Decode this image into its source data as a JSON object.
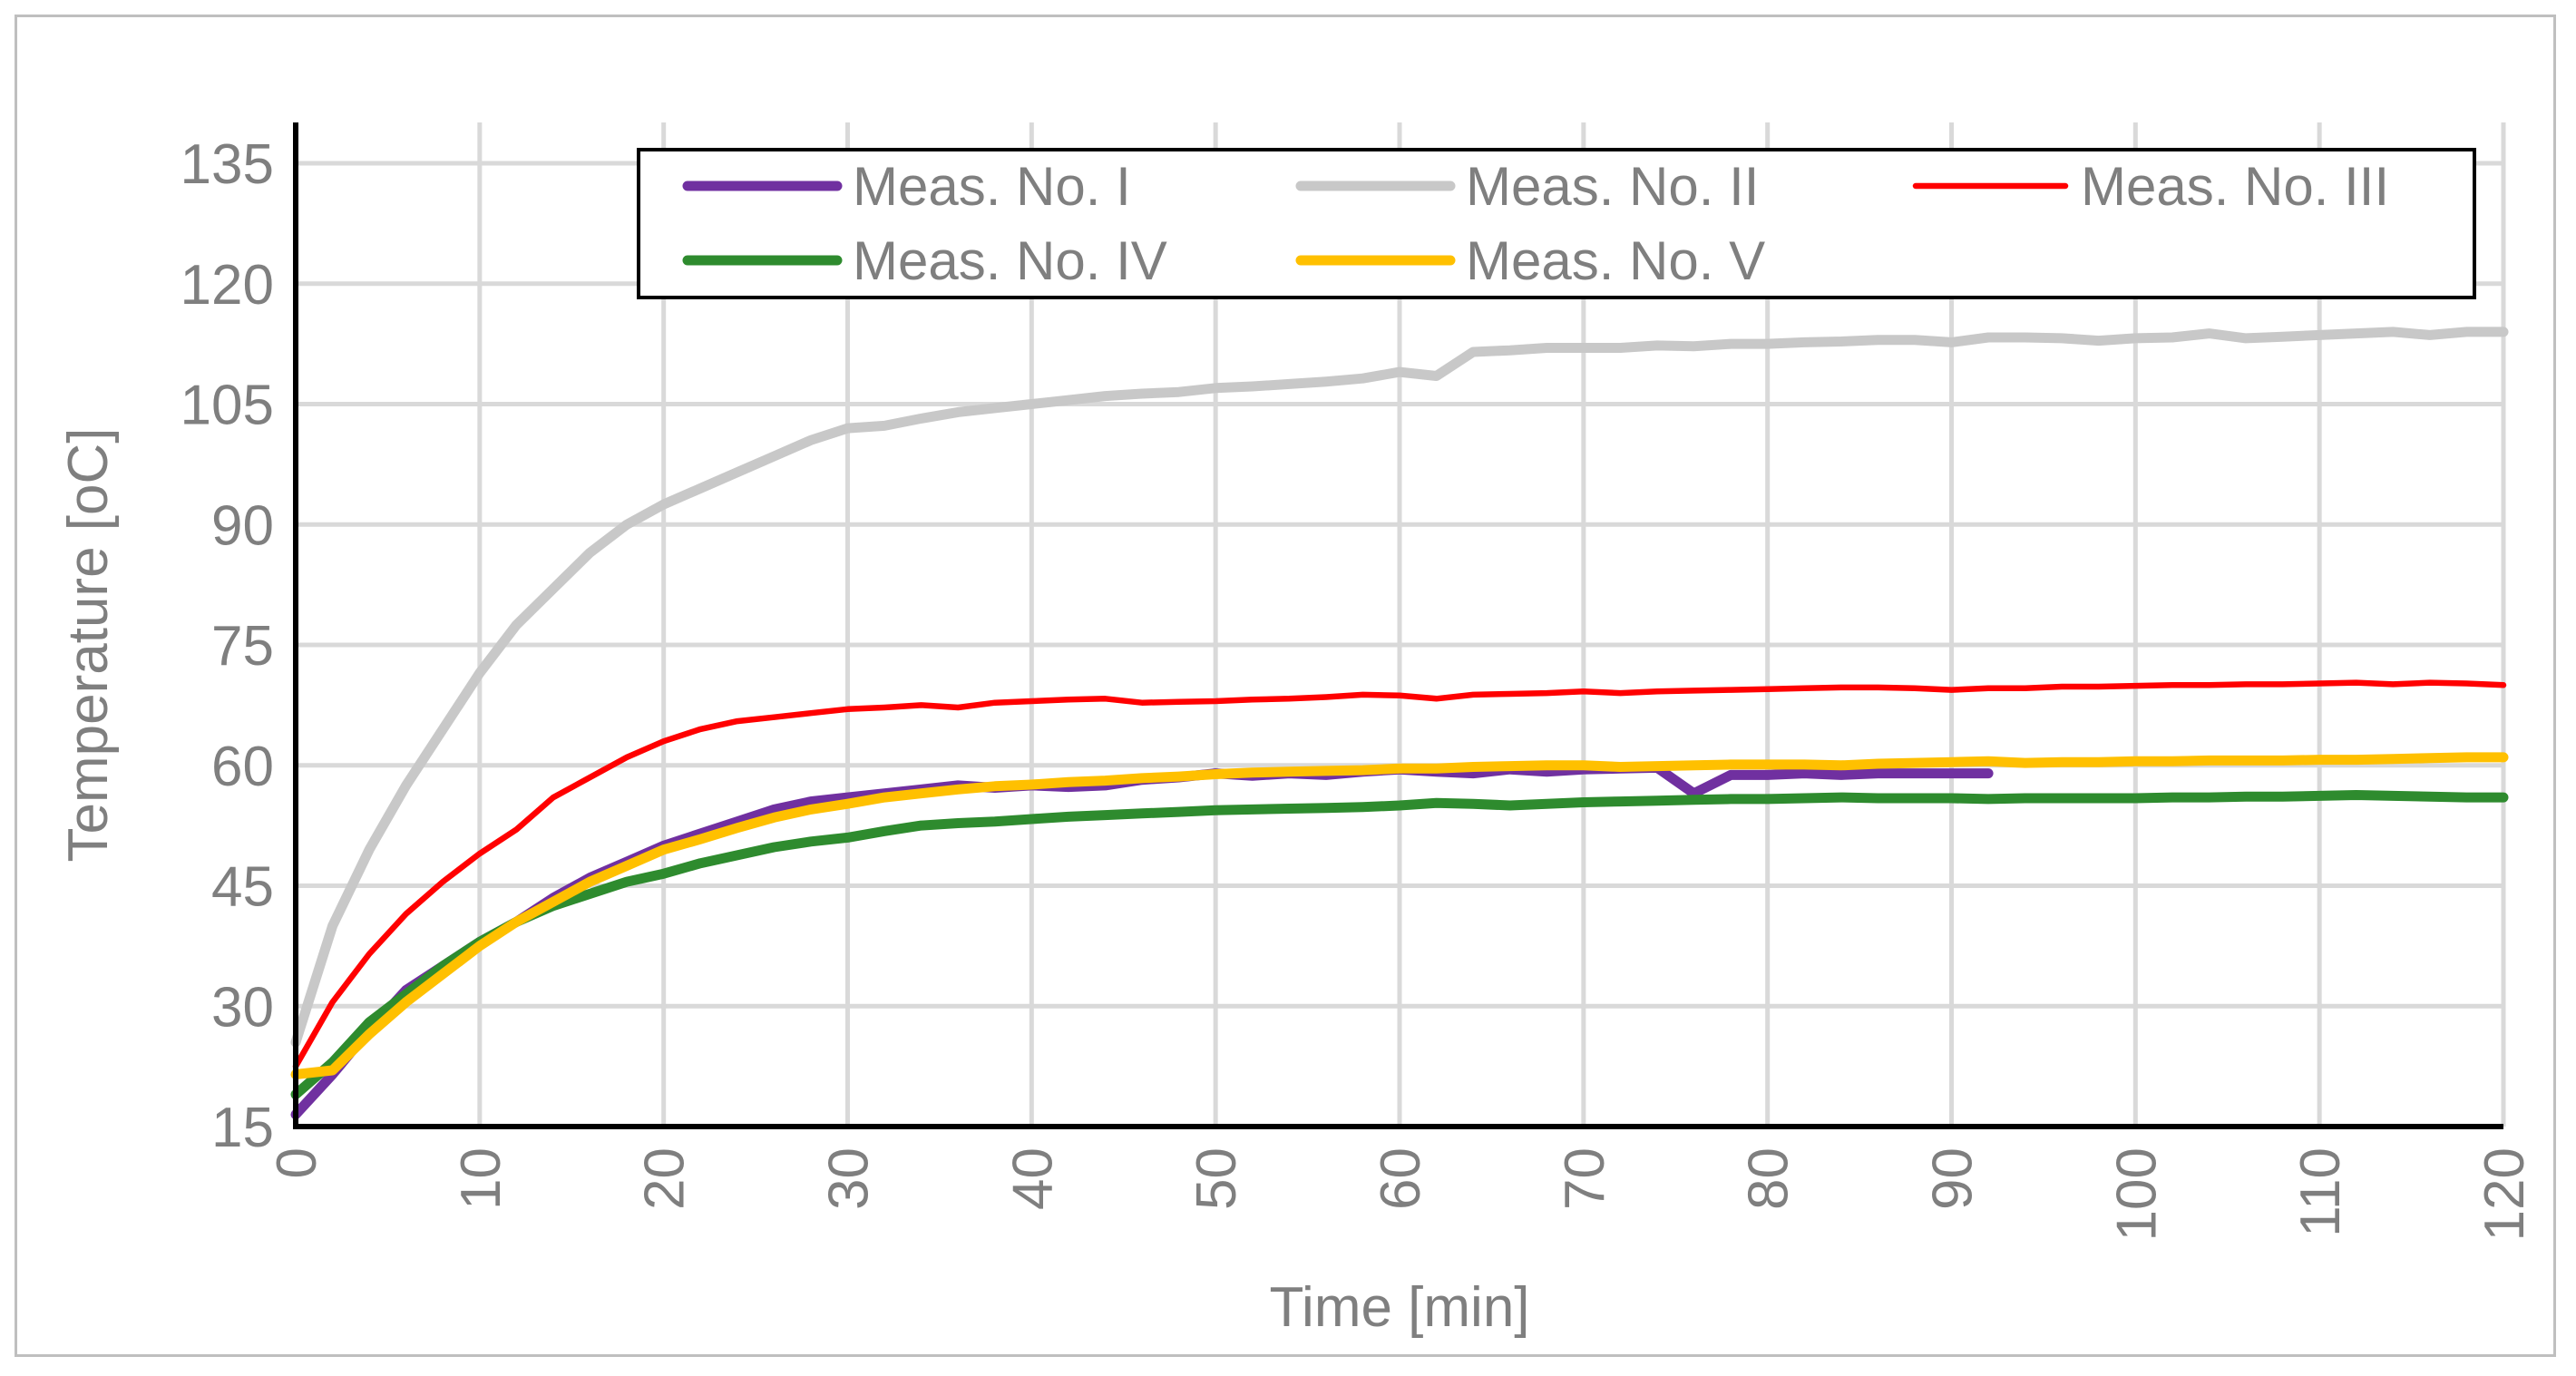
{
  "chart_data": {
    "type": "line",
    "title": "",
    "xlabel": "Time  [min]",
    "ylabel": "Temperature [oC]",
    "xlim": [
      0,
      120
    ],
    "ylim": [
      15,
      135
    ],
    "xticks": [
      0,
      10,
      20,
      30,
      40,
      50,
      60,
      70,
      80,
      90,
      100,
      110,
      120
    ],
    "yticks": [
      15,
      30,
      45,
      60,
      75,
      90,
      105,
      120,
      135
    ],
    "grid": true,
    "legend_position": "top-right",
    "series": [
      {
        "name": "Meas. No. I",
        "color": "#7030a0",
        "x": [
          0,
          2,
          4,
          6,
          8,
          10,
          12,
          14,
          16,
          18,
          20,
          22,
          24,
          26,
          28,
          30,
          32,
          34,
          36,
          38,
          40,
          42,
          44,
          46,
          48,
          50,
          52,
          54,
          56,
          58,
          60,
          62,
          64,
          66,
          68,
          70,
          72,
          74,
          76,
          78,
          80,
          82,
          84,
          86,
          88,
          90,
          92
        ],
        "y": [
          16.5,
          21.5,
          27,
          32,
          35,
          38,
          40.5,
          43.5,
          46,
          48,
          50,
          51.5,
          53,
          54.5,
          55.5,
          56,
          56.5,
          57,
          57.5,
          57.2,
          57.5,
          57.3,
          57.5,
          58.2,
          58.5,
          59,
          58.7,
          59,
          58.8,
          59.2,
          59.5,
          59.2,
          59,
          59.5,
          59.2,
          59.5,
          59.6,
          59.7,
          56.5,
          58.8,
          58.8,
          59,
          58.8,
          59,
          59,
          59,
          59
        ]
      },
      {
        "name": "Meas. No. II",
        "color": "#c8c8c8",
        "x": [
          0,
          2,
          4,
          6,
          8,
          10,
          12,
          14,
          16,
          18,
          20,
          22,
          24,
          26,
          28,
          30,
          32,
          34,
          36,
          38,
          40,
          42,
          44,
          46,
          48,
          50,
          52,
          54,
          56,
          58,
          60,
          62,
          64,
          66,
          68,
          70,
          72,
          74,
          76,
          78,
          80,
          82,
          84,
          86,
          88,
          90,
          92,
          94,
          96,
          98,
          100,
          102,
          104,
          106,
          108,
          110,
          112,
          114,
          116,
          118,
          120
        ],
        "y": [
          25.5,
          40,
          49.5,
          57.5,
          64.5,
          71.5,
          77.5,
          82,
          86.5,
          90,
          92.5,
          94.5,
          96.5,
          98.5,
          100.5,
          102,
          102.3,
          103.2,
          104,
          104.5,
          105,
          105.5,
          106,
          106.3,
          106.5,
          107,
          107.2,
          107.5,
          107.8,
          108.2,
          109,
          108.5,
          111.5,
          111.7,
          112,
          112,
          112,
          112.3,
          112.2,
          112.5,
          112.5,
          112.7,
          112.8,
          113,
          113,
          112.7,
          113.3,
          113.3,
          113.2,
          112.9,
          113.2,
          113.3,
          113.8,
          113.2,
          113.4,
          113.6,
          113.8,
          114,
          113.6,
          114,
          114
        ]
      },
      {
        "name": "Meas. No. III",
        "color": "#ff0000",
        "x": [
          0,
          2,
          4,
          6,
          8,
          10,
          12,
          14,
          16,
          18,
          20,
          22,
          24,
          26,
          28,
          30,
          32,
          34,
          36,
          38,
          40,
          42,
          44,
          46,
          48,
          50,
          52,
          54,
          56,
          58,
          60,
          62,
          64,
          66,
          68,
          70,
          72,
          74,
          76,
          78,
          80,
          82,
          84,
          86,
          88,
          90,
          92,
          94,
          96,
          98,
          100,
          102,
          104,
          106,
          108,
          110,
          112,
          114,
          116,
          118,
          120
        ],
        "y": [
          22.5,
          30.5,
          36.5,
          41.5,
          45.5,
          49,
          52,
          56,
          58.5,
          61,
          63,
          64.5,
          65.5,
          66,
          66.5,
          67,
          67.2,
          67.5,
          67.2,
          67.8,
          68,
          68.2,
          68.3,
          67.8,
          67.9,
          68,
          68.2,
          68.3,
          68.5,
          68.8,
          68.7,
          68.3,
          68.8,
          68.9,
          69,
          69.2,
          69,
          69.2,
          69.3,
          69.4,
          69.5,
          69.6,
          69.7,
          69.7,
          69.6,
          69.4,
          69.6,
          69.6,
          69.8,
          69.8,
          69.9,
          70,
          70,
          70.1,
          70.1,
          70.2,
          70.3,
          70.1,
          70.3,
          70.2,
          70
        ]
      },
      {
        "name": "Meas. No. IV",
        "color": "#2e8b2e",
        "x": [
          0,
          2,
          4,
          6,
          8,
          10,
          12,
          14,
          16,
          18,
          20,
          22,
          24,
          26,
          28,
          30,
          32,
          34,
          36,
          38,
          40,
          42,
          44,
          46,
          48,
          50,
          52,
          54,
          56,
          58,
          60,
          62,
          64,
          66,
          68,
          70,
          72,
          74,
          76,
          78,
          80,
          82,
          84,
          86,
          88,
          90,
          92,
          94,
          96,
          98,
          100,
          102,
          104,
          106,
          108,
          110,
          112,
          114,
          116,
          118,
          120
        ],
        "y": [
          19,
          23,
          28,
          31.5,
          35,
          38,
          40.5,
          42.5,
          44,
          45.5,
          46.5,
          47.8,
          48.8,
          49.8,
          50.5,
          51,
          51.8,
          52.5,
          52.8,
          53,
          53.3,
          53.6,
          53.8,
          54,
          54.2,
          54.4,
          54.5,
          54.6,
          54.7,
          54.8,
          55,
          55.3,
          55.2,
          55,
          55.2,
          55.4,
          55.5,
          55.6,
          55.7,
          55.8,
          55.8,
          55.9,
          56,
          55.9,
          55.9,
          55.9,
          55.8,
          55.9,
          55.9,
          55.9,
          55.9,
          56,
          56,
          56.1,
          56.1,
          56.2,
          56.3,
          56.2,
          56.1,
          56,
          56
        ]
      },
      {
        "name": "Meas. No. V",
        "color": "#ffc000",
        "x": [
          0,
          2,
          4,
          6,
          8,
          10,
          12,
          14,
          16,
          18,
          20,
          22,
          24,
          26,
          28,
          30,
          32,
          34,
          36,
          38,
          40,
          42,
          44,
          46,
          48,
          50,
          52,
          54,
          56,
          58,
          60,
          62,
          64,
          66,
          68,
          70,
          72,
          74,
          76,
          78,
          80,
          82,
          84,
          86,
          88,
          90,
          92,
          94,
          96,
          98,
          100,
          102,
          104,
          106,
          108,
          110,
          112,
          114,
          116,
          118,
          120
        ],
        "y": [
          21.5,
          22,
          26.5,
          30.5,
          34,
          37.5,
          40.5,
          43,
          45.5,
          47.5,
          49.5,
          50.8,
          52.2,
          53.5,
          54.5,
          55.2,
          56,
          56.5,
          57,
          57.4,
          57.6,
          57.9,
          58.1,
          58.4,
          58.6,
          58.9,
          59.1,
          59.2,
          59.3,
          59.4,
          59.6,
          59.6,
          59.8,
          59.9,
          60,
          60,
          59.8,
          59.9,
          60,
          60.1,
          60.1,
          60.1,
          60,
          60.2,
          60.3,
          60.4,
          60.5,
          60.3,
          60.4,
          60.4,
          60.5,
          60.5,
          60.6,
          60.6,
          60.6,
          60.7,
          60.7,
          60.8,
          60.9,
          61,
          61
        ]
      }
    ]
  }
}
